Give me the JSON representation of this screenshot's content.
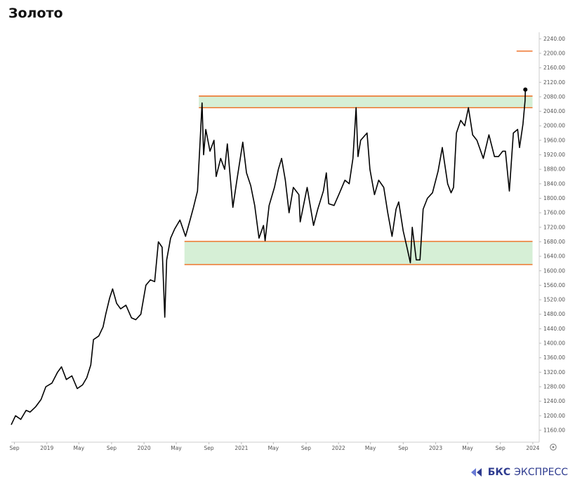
{
  "title": "Золото",
  "brand": {
    "name": "БКС",
    "suffix": "ЭКСПРЕСС"
  },
  "colors": {
    "line": "#000000",
    "band_fill": "#d6efd6",
    "band_edge": "#ee6a1c",
    "axis_text": "#555555",
    "brand": "#2e3b8f"
  },
  "icons": {
    "settings": "settings-gear-icon",
    "brand": "bks-logo-icon"
  },
  "chart_data": {
    "type": "line",
    "title": "Золото",
    "xlabel": "",
    "ylabel": "",
    "ylim": [
      1127,
      2258
    ],
    "xlim": [
      "2018-08-20",
      "2024-01-25"
    ],
    "y_ticks": [
      "1160.00",
      "1200.00",
      "1240.00",
      "1280.00",
      "1320.00",
      "1360.00",
      "1400.00",
      "1440.00",
      "1480.00",
      "1520.00",
      "1560.00",
      "1600.00",
      "1640.00",
      "1680.00",
      "1720.00",
      "1760.00",
      "1800.00",
      "1840.00",
      "1880.00",
      "1920.00",
      "1960.00",
      "2000.00",
      "2040.00",
      "2080.00",
      "2120.00",
      "2160.00",
      "2200.00",
      "2240.00"
    ],
    "x_ticks": [
      {
        "label": "Sep",
        "date": "2018-09-01"
      },
      {
        "label": "2019",
        "date": "2019-01-01"
      },
      {
        "label": "May",
        "date": "2019-05-01"
      },
      {
        "label": "Sep",
        "date": "2019-09-01"
      },
      {
        "label": "2020",
        "date": "2020-01-01"
      },
      {
        "label": "May",
        "date": "2020-05-01"
      },
      {
        "label": "Sep",
        "date": "2020-09-01"
      },
      {
        "label": "2021",
        "date": "2021-01-01"
      },
      {
        "label": "May",
        "date": "2021-05-01"
      },
      {
        "label": "Sep",
        "date": "2021-09-01"
      },
      {
        "label": "2022",
        "date": "2022-01-01"
      },
      {
        "label": "May",
        "date": "2022-05-01"
      },
      {
        "label": "Sep",
        "date": "2022-09-01"
      },
      {
        "label": "2023",
        "date": "2023-01-01"
      },
      {
        "label": "May",
        "date": "2023-05-01"
      },
      {
        "label": "Sep",
        "date": "2023-09-01"
      },
      {
        "label": "2024",
        "date": "2024-01-01"
      }
    ],
    "grid": false,
    "series": [
      {
        "points": [
          [
            "2018-08-20",
            1175
          ],
          [
            "2018-09-05",
            1200
          ],
          [
            "2018-09-25",
            1190
          ],
          [
            "2018-10-15",
            1215
          ],
          [
            "2018-10-30",
            1210
          ],
          [
            "2018-11-20",
            1225
          ],
          [
            "2018-12-10",
            1245
          ],
          [
            "2018-12-28",
            1280
          ],
          [
            "2019-01-20",
            1290
          ],
          [
            "2019-02-10",
            1320
          ],
          [
            "2019-02-25",
            1335
          ],
          [
            "2019-03-15",
            1300
          ],
          [
            "2019-04-05",
            1310
          ],
          [
            "2019-04-25",
            1275
          ],
          [
            "2019-05-15",
            1285
          ],
          [
            "2019-05-31",
            1305
          ],
          [
            "2019-06-15",
            1340
          ],
          [
            "2019-06-25",
            1410
          ],
          [
            "2019-07-15",
            1420
          ],
          [
            "2019-07-31",
            1445
          ],
          [
            "2019-08-10",
            1480
          ],
          [
            "2019-08-25",
            1525
          ],
          [
            "2019-09-05",
            1550
          ],
          [
            "2019-09-20",
            1510
          ],
          [
            "2019-10-05",
            1495
          ],
          [
            "2019-10-25",
            1505
          ],
          [
            "2019-11-15",
            1470
          ],
          [
            "2019-12-01",
            1465
          ],
          [
            "2019-12-20",
            1480
          ],
          [
            "2020-01-08",
            1560
          ],
          [
            "2020-01-25",
            1575
          ],
          [
            "2020-02-10",
            1570
          ],
          [
            "2020-02-24",
            1680
          ],
          [
            "2020-03-09",
            1665
          ],
          [
            "2020-03-19",
            1472
          ],
          [
            "2020-03-26",
            1630
          ],
          [
            "2020-04-10",
            1690
          ],
          [
            "2020-04-25",
            1715
          ],
          [
            "2020-05-15",
            1740
          ],
          [
            "2020-06-05",
            1695
          ],
          [
            "2020-06-20",
            1735
          ],
          [
            "2020-07-05",
            1775
          ],
          [
            "2020-07-20",
            1820
          ],
          [
            "2020-07-31",
            1975
          ],
          [
            "2020-08-06",
            2063
          ],
          [
            "2020-08-12",
            1920
          ],
          [
            "2020-08-20",
            1990
          ],
          [
            "2020-09-05",
            1930
          ],
          [
            "2020-09-20",
            1960
          ],
          [
            "2020-09-28",
            1860
          ],
          [
            "2020-10-15",
            1910
          ],
          [
            "2020-10-30",
            1880
          ],
          [
            "2020-11-09",
            1950
          ],
          [
            "2020-11-30",
            1775
          ],
          [
            "2020-12-15",
            1850
          ],
          [
            "2021-01-06",
            1955
          ],
          [
            "2021-01-20",
            1870
          ],
          [
            "2021-02-05",
            1835
          ],
          [
            "2021-02-20",
            1780
          ],
          [
            "2021-03-08",
            1690
          ],
          [
            "2021-03-25",
            1725
          ],
          [
            "2021-03-31",
            1683
          ],
          [
            "2021-04-15",
            1780
          ],
          [
            "2021-05-05",
            1830
          ],
          [
            "2021-05-20",
            1880
          ],
          [
            "2021-06-01",
            1910
          ],
          [
            "2021-06-15",
            1850
          ],
          [
            "2021-06-29",
            1760
          ],
          [
            "2021-07-15",
            1830
          ],
          [
            "2021-08-05",
            1810
          ],
          [
            "2021-08-10",
            1735
          ],
          [
            "2021-08-25",
            1790
          ],
          [
            "2021-09-05",
            1830
          ],
          [
            "2021-09-29",
            1725
          ],
          [
            "2021-10-15",
            1770
          ],
          [
            "2021-11-05",
            1820
          ],
          [
            "2021-11-16",
            1870
          ],
          [
            "2021-11-25",
            1785
          ],
          [
            "2021-12-15",
            1780
          ],
          [
            "2022-01-05",
            1815
          ],
          [
            "2022-01-25",
            1850
          ],
          [
            "2022-02-10",
            1840
          ],
          [
            "2022-02-24",
            1910
          ],
          [
            "2022-03-08",
            2050
          ],
          [
            "2022-03-15",
            1915
          ],
          [
            "2022-03-25",
            1960
          ],
          [
            "2022-04-18",
            1980
          ],
          [
            "2022-04-29",
            1880
          ],
          [
            "2022-05-16",
            1810
          ],
          [
            "2022-06-01",
            1850
          ],
          [
            "2022-06-20",
            1830
          ],
          [
            "2022-07-05",
            1760
          ],
          [
            "2022-07-21",
            1695
          ],
          [
            "2022-08-05",
            1770
          ],
          [
            "2022-08-15",
            1790
          ],
          [
            "2022-09-01",
            1710
          ],
          [
            "2022-09-15",
            1665
          ],
          [
            "2022-09-28",
            1622
          ],
          [
            "2022-10-05",
            1720
          ],
          [
            "2022-10-20",
            1630
          ],
          [
            "2022-11-03",
            1630
          ],
          [
            "2022-11-15",
            1770
          ],
          [
            "2022-12-01",
            1800
          ],
          [
            "2022-12-20",
            1815
          ],
          [
            "2023-01-10",
            1875
          ],
          [
            "2023-01-26",
            1940
          ],
          [
            "2023-02-15",
            1840
          ],
          [
            "2023-02-28",
            1815
          ],
          [
            "2023-03-09",
            1830
          ],
          [
            "2023-03-20",
            1980
          ],
          [
            "2023-04-05",
            2015
          ],
          [
            "2023-04-20",
            2000
          ],
          [
            "2023-05-04",
            2050
          ],
          [
            "2023-05-20",
            1975
          ],
          [
            "2023-06-05",
            1960
          ],
          [
            "2023-06-29",
            1910
          ],
          [
            "2023-07-20",
            1975
          ],
          [
            "2023-08-10",
            1915
          ],
          [
            "2023-08-25",
            1915
          ],
          [
            "2023-09-10",
            1930
          ],
          [
            "2023-09-20",
            1930
          ],
          [
            "2023-10-05",
            1820
          ],
          [
            "2023-10-20",
            1980
          ],
          [
            "2023-11-05",
            1990
          ],
          [
            "2023-11-12",
            1940
          ],
          [
            "2023-11-25",
            2005
          ],
          [
            "2023-12-03",
            2070
          ],
          [
            "2023-12-04",
            2100
          ]
        ]
      }
    ],
    "annotations": {
      "resistance_zone": {
        "from": 2050,
        "to": 2082,
        "start": "2020-07-25",
        "end": "2023-12-31"
      },
      "support_zone": {
        "from": 1617,
        "to": 1681,
        "start": "2020-06-01",
        "end": "2023-12-31"
      },
      "target_level": {
        "value": 2206,
        "start": "2023-11-01",
        "end": "2023-12-31"
      }
    }
  }
}
